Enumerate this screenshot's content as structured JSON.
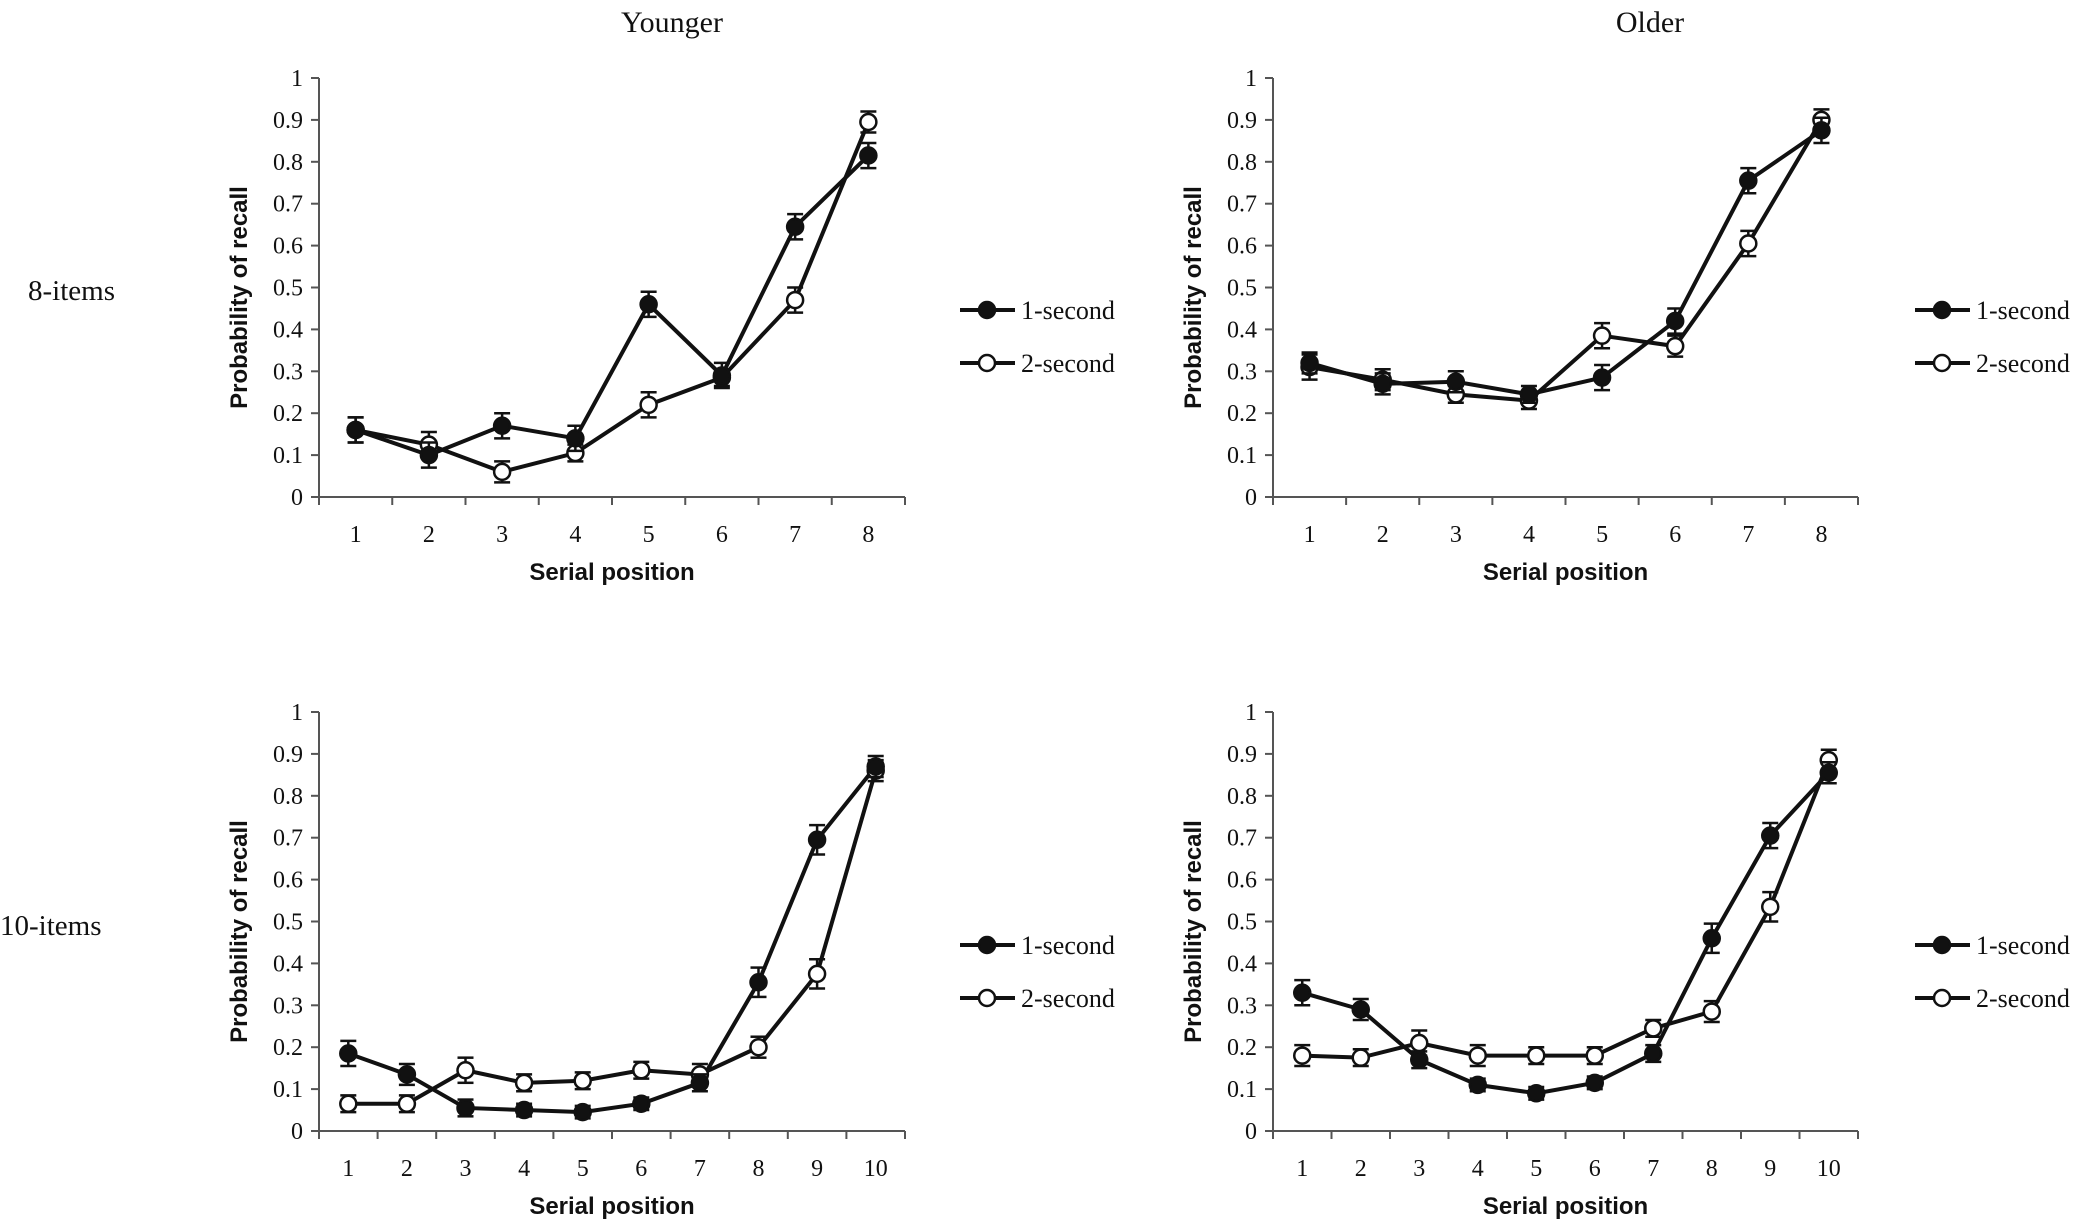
{
  "column_titles": [
    "Younger",
    "Older"
  ],
  "row_labels": [
    "8-items",
    "10-items"
  ],
  "colors": {
    "ink": "#111111",
    "axis": "#555555",
    "background": "#ffffff"
  },
  "chart_data": [
    {
      "type": "line",
      "panel": "Younger 8-items",
      "xlabel": "Serial position",
      "ylabel": "Probability of recall",
      "x": [
        1,
        2,
        3,
        4,
        5,
        6,
        7,
        8
      ],
      "ylim": [
        0,
        1
      ],
      "yticks": [
        "0",
        "0.1",
        "0.2",
        "0.3",
        "0.4",
        "0.5",
        "0.6",
        "0.7",
        "0.8",
        "0.9",
        "1"
      ],
      "legend": [
        "1-second",
        "2-second"
      ],
      "series": [
        {
          "name": "1-second",
          "marker": "filled",
          "values": [
            0.16,
            0.1,
            0.17,
            0.14,
            0.46,
            0.29,
            0.645,
            0.815
          ],
          "errors": [
            0.03,
            0.03,
            0.03,
            0.03,
            0.03,
            0.03,
            0.03,
            0.03
          ]
        },
        {
          "name": "2-second",
          "marker": "open",
          "values": [
            0.16,
            0.125,
            0.06,
            0.105,
            0.22,
            0.285,
            0.47,
            0.895
          ],
          "errors": [
            0.03,
            0.03,
            0.025,
            0.02,
            0.03,
            0.02,
            0.03,
            0.025
          ]
        }
      ]
    },
    {
      "type": "line",
      "panel": "Older 8-items",
      "xlabel": "Serial position",
      "ylabel": "Probability of recall",
      "x": [
        1,
        2,
        3,
        4,
        5,
        6,
        7,
        8
      ],
      "ylim": [
        0,
        1
      ],
      "yticks": [
        "0",
        "0.1",
        "0.2",
        "0.3",
        "0.4",
        "0.5",
        "0.6",
        "0.7",
        "0.8",
        "0.9",
        "1"
      ],
      "legend": [
        "1-second",
        "2-second"
      ],
      "series": [
        {
          "name": "1-second",
          "marker": "filled",
          "values": [
            0.32,
            0.27,
            0.275,
            0.245,
            0.285,
            0.42,
            0.755,
            0.875
          ],
          "errors": [
            0.025,
            0.025,
            0.025,
            0.02,
            0.03,
            0.03,
            0.03,
            0.03
          ]
        },
        {
          "name": "2-second",
          "marker": "open",
          "values": [
            0.31,
            0.28,
            0.245,
            0.23,
            0.385,
            0.36,
            0.605,
            0.9
          ],
          "errors": [
            0.03,
            0.025,
            0.02,
            0.02,
            0.03,
            0.025,
            0.03,
            0.025
          ]
        }
      ]
    },
    {
      "type": "line",
      "panel": "Younger 10-items",
      "xlabel": "Serial position",
      "ylabel": "Probability of recall",
      "x": [
        1,
        2,
        3,
        4,
        5,
        6,
        7,
        8,
        9,
        10
      ],
      "ylim": [
        0,
        1
      ],
      "yticks": [
        "0",
        "0.1",
        "0.2",
        "0.3",
        "0.4",
        "0.5",
        "0.6",
        "0.7",
        "0.8",
        "0.9",
        "1"
      ],
      "legend": [
        "1-second",
        "2-second"
      ],
      "series": [
        {
          "name": "1-second",
          "marker": "filled",
          "values": [
            0.185,
            0.135,
            0.055,
            0.05,
            0.045,
            0.065,
            0.115,
            0.355,
            0.695,
            0.87
          ],
          "errors": [
            0.03,
            0.025,
            0.02,
            0.015,
            0.015,
            0.015,
            0.02,
            0.035,
            0.035,
            0.025
          ]
        },
        {
          "name": "2-second",
          "marker": "open",
          "values": [
            0.065,
            0.065,
            0.145,
            0.115,
            0.12,
            0.145,
            0.135,
            0.2,
            0.375,
            0.86
          ],
          "errors": [
            0.02,
            0.02,
            0.03,
            0.02,
            0.02,
            0.02,
            0.025,
            0.025,
            0.035,
            0.025
          ]
        }
      ]
    },
    {
      "type": "line",
      "panel": "Older 10-items",
      "xlabel": "Serial position",
      "ylabel": "Probability of recall",
      "x": [
        1,
        2,
        3,
        4,
        5,
        6,
        7,
        8,
        9,
        10
      ],
      "ylim": [
        0,
        1
      ],
      "yticks": [
        "0",
        "0.1",
        "0.2",
        "0.3",
        "0.4",
        "0.5",
        "0.6",
        "0.7",
        "0.8",
        "0.9",
        "1"
      ],
      "legend": [
        "1-second",
        "2-second"
      ],
      "series": [
        {
          "name": "1-second",
          "marker": "filled",
          "values": [
            0.33,
            0.29,
            0.17,
            0.11,
            0.09,
            0.115,
            0.185,
            0.46,
            0.705,
            0.855
          ],
          "errors": [
            0.03,
            0.025,
            0.02,
            0.015,
            0.015,
            0.015,
            0.02,
            0.035,
            0.03,
            0.025
          ]
        },
        {
          "name": "2-second",
          "marker": "open",
          "values": [
            0.18,
            0.175,
            0.21,
            0.18,
            0.18,
            0.18,
            0.245,
            0.285,
            0.535,
            0.885
          ],
          "errors": [
            0.025,
            0.02,
            0.03,
            0.025,
            0.02,
            0.02,
            0.02,
            0.025,
            0.035,
            0.025
          ]
        }
      ]
    }
  ]
}
